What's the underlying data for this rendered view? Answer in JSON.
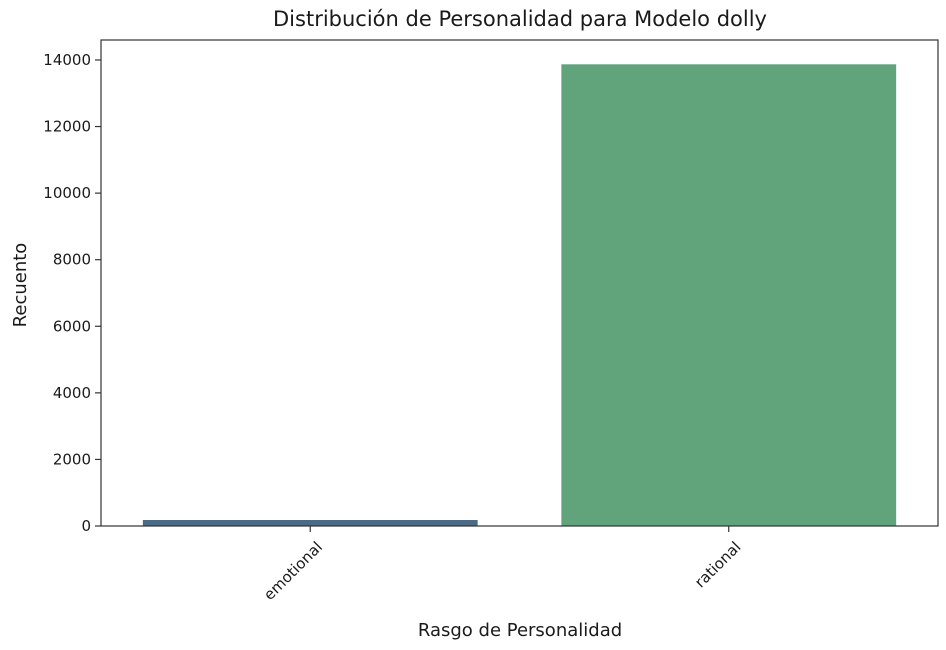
{
  "chart_data": {
    "type": "bar",
    "title": "Distribución de Personalidad para Modelo dolly",
    "xlabel": "Rasgo de Personalidad",
    "ylabel": "Recuento",
    "categories": [
      "emotional",
      "rational"
    ],
    "values": [
      180,
      13870
    ],
    "colors": [
      "#4a6a85",
      "#61a47c"
    ],
    "ylim": [
      0,
      14600
    ],
    "yticks": [
      0,
      2000,
      4000,
      6000,
      8000,
      10000,
      12000,
      14000
    ],
    "grid": false,
    "xtick_rotation": 45
  }
}
